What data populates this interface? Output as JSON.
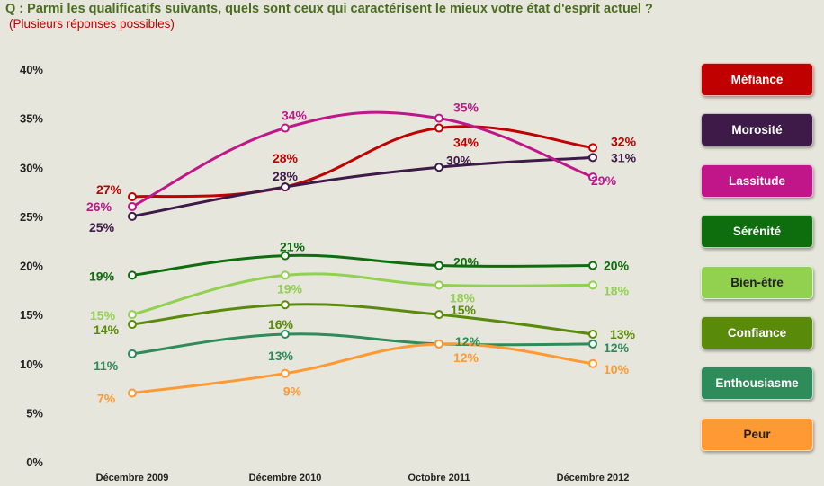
{
  "header": {
    "question": "Q : Parmi les qualificatifs suivants, quels sont ceux qui caractérisent le mieux votre état d'esprit actuel ?",
    "subtitle": "(Plusieurs réponses possibles)"
  },
  "chart_data": {
    "type": "line",
    "categories": [
      "Décembre 2009",
      "Décembre 2010",
      "Octobre 2011",
      "Décembre 2012"
    ],
    "ylim": [
      0,
      40
    ],
    "yticks": [
      "0%",
      "5%",
      "10%",
      "15%",
      "20%",
      "25%",
      "30%",
      "35%",
      "40%"
    ],
    "grid": false,
    "legend_position": "right",
    "series": [
      {
        "name": "Méfiance",
        "color": "#c00000",
        "values": [
          27,
          28,
          34,
          32
        ],
        "labels": [
          "27%",
          "28%",
          "34%",
          "32%"
        ]
      },
      {
        "name": "Morosité",
        "color": "#3d1a48",
        "values": [
          25,
          28,
          30,
          31
        ],
        "labels": [
          "25%",
          "28%",
          "30%",
          "31%"
        ]
      },
      {
        "name": "Lassitude",
        "color": "#c0168a",
        "values": [
          26,
          34,
          35,
          29
        ],
        "labels": [
          "26%",
          "34%",
          "35%",
          "29%"
        ]
      },
      {
        "name": "Sérénité",
        "color": "#0e6e0e",
        "values": [
          19,
          21,
          20,
          20
        ],
        "labels": [
          "19%",
          "21%",
          "20%",
          "20%"
        ]
      },
      {
        "name": "Bien-être",
        "color": "#92d050",
        "values": [
          15,
          19,
          18,
          18
        ],
        "labels": [
          "15%",
          "19%",
          "18%",
          "18%"
        ]
      },
      {
        "name": "Confiance",
        "color": "#5a8a0a",
        "values": [
          14,
          16,
          15,
          13
        ],
        "labels": [
          "14%",
          "16%",
          "15%",
          "13%"
        ]
      },
      {
        "name": "Enthousiasme",
        "color": "#2e8b5a",
        "values": [
          11,
          13,
          12,
          12
        ],
        "labels": [
          "11%",
          "13%",
          "12%",
          "12%"
        ]
      },
      {
        "name": "Peur",
        "color": "#ff9933",
        "values": [
          7,
          9,
          12,
          10
        ],
        "labels": [
          "7%",
          "9%",
          "12%",
          "10%"
        ]
      }
    ]
  }
}
